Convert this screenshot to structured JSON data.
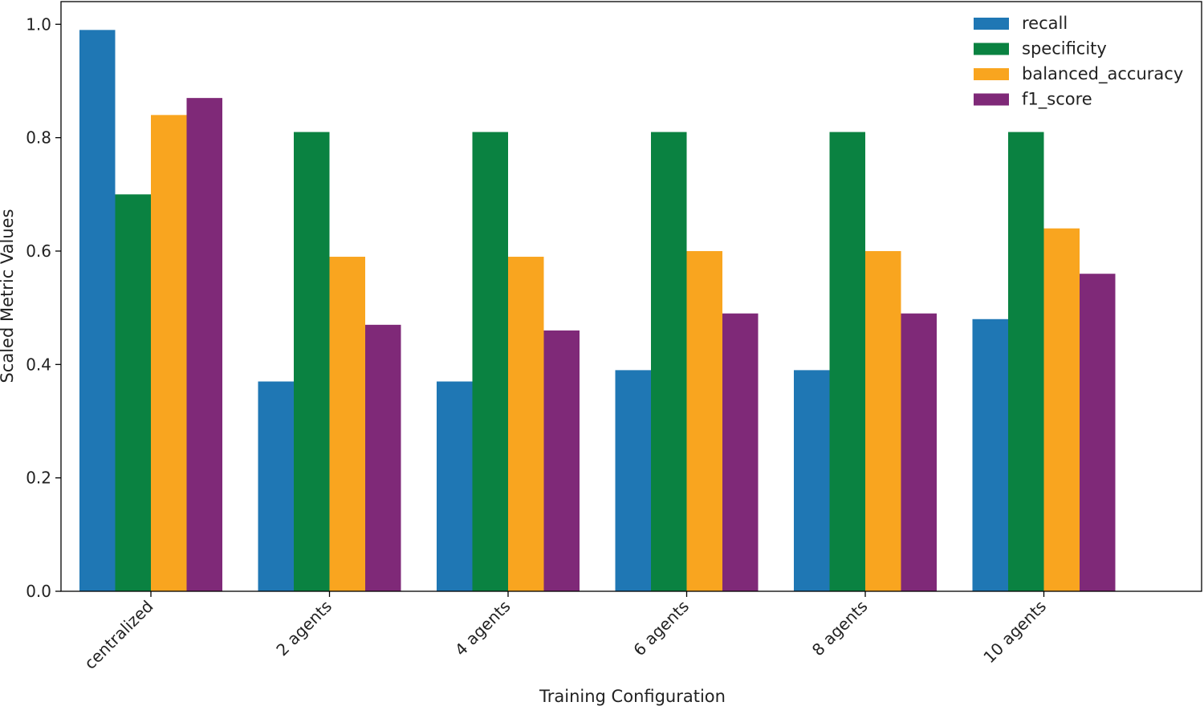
{
  "chart_data": {
    "type": "bar",
    "title": "",
    "xlabel": "Training Configuration",
    "ylabel": "Scaled Metric Values",
    "categories": [
      "centralized",
      "2 agents",
      "4 agents",
      "6 agents",
      "8 agents",
      "10 agents"
    ],
    "series": [
      {
        "name": "recall",
        "color": "#1f77b4",
        "values": [
          0.99,
          0.37,
          0.37,
          0.39,
          0.39,
          0.48
        ]
      },
      {
        "name": "specificity",
        "color": "#0a8241",
        "values": [
          0.7,
          0.81,
          0.81,
          0.81,
          0.81,
          0.81
        ]
      },
      {
        "name": "balanced_accuracy",
        "color": "#f9a51f",
        "values": [
          0.84,
          0.59,
          0.59,
          0.6,
          0.6,
          0.64
        ]
      },
      {
        "name": "f1_score",
        "color": "#7f2978",
        "values": [
          0.87,
          0.47,
          0.46,
          0.49,
          0.49,
          0.56
        ]
      }
    ],
    "yticks": [
      "0.0",
      "0.2",
      "0.4",
      "0.6",
      "0.8",
      "1.0"
    ],
    "ylim": [
      0,
      1.04
    ],
    "grid": false,
    "legend": "top-right"
  }
}
